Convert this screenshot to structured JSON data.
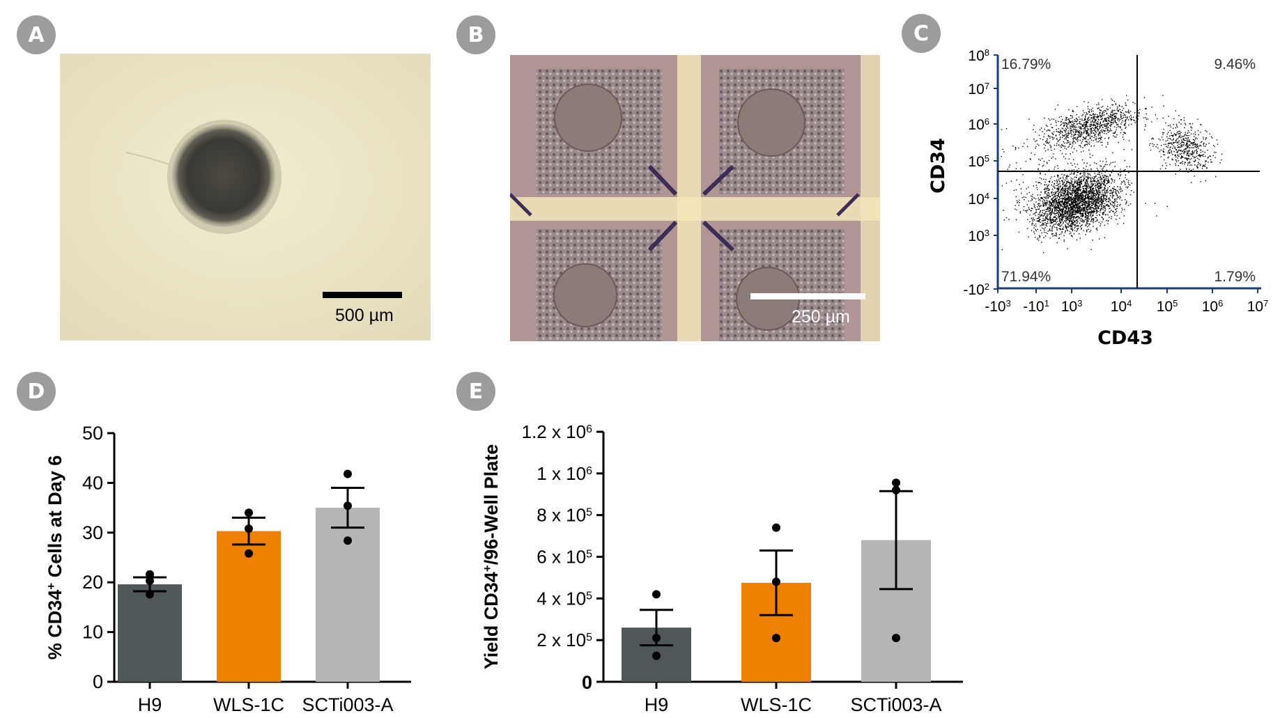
{
  "panels": {
    "a": "A",
    "b": "B",
    "c": "C",
    "d": "D",
    "e": "E"
  },
  "micro_a": {
    "scale_label": "500 µm"
  },
  "micro_b": {
    "scale_label": "250 µm"
  },
  "flow": {
    "xlabel": "CD43",
    "ylabel": "CD34",
    "q_ul": "16.79%",
    "q_ur": "9.46%",
    "q_ll": "71.94%",
    "q_lr": "1.79%",
    "y_ticks": [
      {
        "b": "10",
        "e": "8"
      },
      {
        "b": "10",
        "e": "7"
      },
      {
        "b": "10",
        "e": "6"
      },
      {
        "b": "10",
        "e": "5"
      },
      {
        "b": "10",
        "e": "4"
      },
      {
        "b": "10",
        "e": "3"
      },
      {
        "b": "-10",
        "e": "2"
      }
    ],
    "x_ticks": [
      {
        "b": "-10",
        "e": "3"
      },
      {
        "b": "-10",
        "e": "1"
      },
      {
        "b": "10",
        "e": "3"
      },
      {
        "b": "10",
        "e": "4"
      },
      {
        "b": "10",
        "e": "5"
      },
      {
        "b": "10",
        "e": "6"
      },
      {
        "b": "10",
        "e": "7"
      }
    ]
  },
  "colors": {
    "H9": "#505759",
    "WLS-1C": "#ee8100",
    "SCTi003-A": "#b4b5b7",
    "badge": "#9c9c9c"
  },
  "chart_data": [
    {
      "type": "bar",
      "ylabel_pre": "% CD34",
      "ylabel_sup": "+",
      "ylabel_post": " Cells at Day 6",
      "categories": [
        "H9",
        "WLS-1C",
        "SCTi003-A"
      ],
      "values": [
        19.6,
        30.3,
        35.0
      ],
      "sem": [
        1.4,
        2.7,
        4.0
      ],
      "points": [
        [
          21.6,
          20.3,
          17.6
        ],
        [
          34.0,
          30.8,
          25.8
        ],
        [
          41.8,
          35.4,
          28.4
        ]
      ],
      "ylim": [
        0,
        50
      ],
      "yticks": [
        0,
        10,
        20,
        30,
        40,
        50
      ]
    },
    {
      "type": "bar",
      "ylabel_pre": "Yield CD34",
      "ylabel_sup": "+",
      "ylabel_post": "/96-Well Plate",
      "categories": [
        "H9",
        "WLS-1C",
        "SCTi003-A"
      ],
      "values": [
        260000,
        475000,
        680000
      ],
      "sem": [
        85000,
        155000,
        235000
      ],
      "points": [
        [
          420000,
          210000,
          125000
        ],
        [
          740000,
          480000,
          210000
        ],
        [
          955000,
          920000,
          210000
        ]
      ],
      "ylim": [
        0,
        1200000
      ],
      "ytick_labels": [
        "0",
        "2 x 10|5",
        "4 x 10|5",
        "6 x 10|5",
        "8 x 10|5",
        "1 x 10|6",
        "1.2 x 10|6"
      ]
    }
  ]
}
